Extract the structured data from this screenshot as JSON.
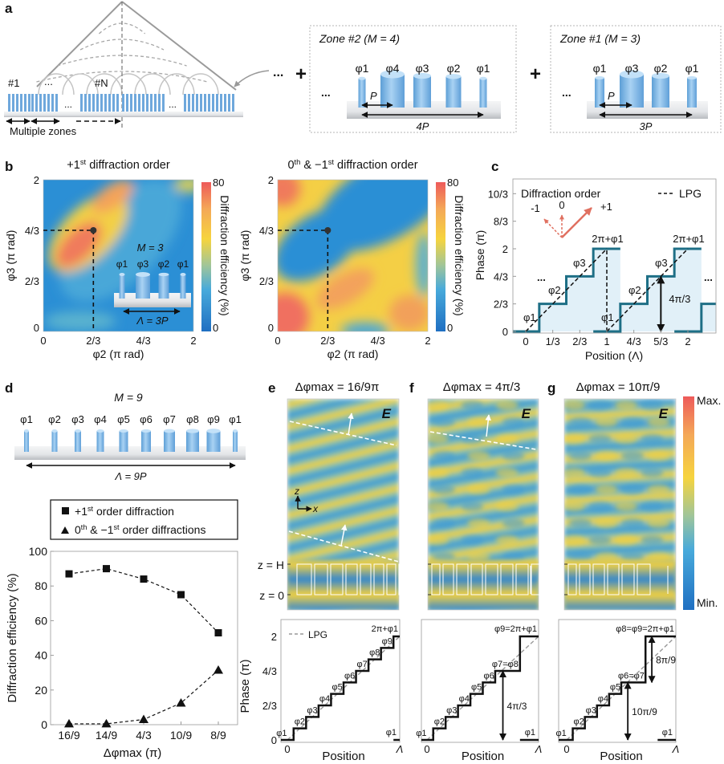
{
  "panel_labels": {
    "a": "a",
    "b": "b",
    "c": "c",
    "d": "d",
    "e": "e",
    "f": "f",
    "g": "g"
  },
  "a": {
    "zone_first": "#1",
    "zone_n": "#N",
    "ellipsis": "...",
    "multiple_zones": "Multiple zones",
    "plus": "+",
    "zone2": {
      "title": "Zone #2 (M = 4)",
      "phases": [
        "φ1",
        "φ4",
        "φ3",
        "φ2",
        "φ1"
      ],
      "pitch": "P",
      "period": "4P"
    },
    "zone1": {
      "title": "Zone #1 (M = 3)",
      "phases": [
        "φ1",
        "φ3",
        "φ2",
        "φ1"
      ],
      "pitch": "P",
      "period": "3P"
    }
  },
  "b": {
    "left_title": "+1st diffraction order",
    "right_title": "0th & −1st diffraction order",
    "xlabel": "φ2 (π rad)",
    "ylabel": "φ3 (π rad)",
    "ticks": [
      "0",
      "2/3",
      "4/3",
      "2"
    ],
    "marked_point": {
      "phi2": 0.6667,
      "phi3": 1.3333
    },
    "colorbar": {
      "label": "Diffraction efficiency (%)",
      "max": "80",
      "min": "0"
    },
    "inset": {
      "m_label": "M = 3",
      "phases": [
        "φ1",
        "φ3",
        "φ2",
        "φ1"
      ],
      "period": "Λ = 3P"
    }
  },
  "c": {
    "chart_data": {
      "type": "line",
      "xlabel": "Position (Λ)",
      "ylabel": "Phase (π)",
      "xticks": [
        "0",
        "1/3",
        "2/3",
        "1",
        "4/3",
        "5/3",
        "2"
      ],
      "yticks": [
        "0",
        "2/3",
        "4/3",
        "2",
        "8/3",
        "10/3"
      ],
      "xlim": [
        -0.16,
        2.33
      ],
      "ylim": [
        0,
        3.7
      ],
      "step_levels": [
        0,
        0.6667,
        1.3333,
        2
      ],
      "step_width": 0.3333,
      "period_starts": [
        0,
        1,
        2
      ],
      "lpg_segments": [
        [
          [
            0,
            0
          ],
          [
            1,
            2
          ]
        ],
        [
          [
            1,
            0
          ],
          [
            2,
            2
          ]
        ]
      ],
      "legend": "LPG",
      "legend_position": "top-right",
      "labels_period": [
        "φ1",
        "φ2",
        "φ3",
        "2π+φ1"
      ],
      "ellipsis": "...",
      "arrow_label": "4π/3",
      "arrow": {
        "x": 1.6667,
        "from": 0,
        "to": 1.3333
      }
    },
    "inset": {
      "title": "Diffraction order",
      "orders": [
        "-1",
        "0",
        "+1"
      ],
      "color": "#e07060"
    }
  },
  "d": {
    "m_label": "M = 9",
    "phases": [
      "φ1",
      "φ2",
      "φ3",
      "φ4",
      "φ5",
      "φ6",
      "φ7",
      "φ8",
      "φ9",
      "φ1"
    ],
    "period": "Λ = 9P",
    "chart_data": {
      "type": "line",
      "categories": [
        "16/9",
        "14/9",
        "4/3",
        "10/9",
        "8/9"
      ],
      "series": [
        {
          "name": "+1st order diffraction",
          "marker": "square",
          "values": [
            87,
            90,
            84,
            75,
            53
          ]
        },
        {
          "name": "0th & −1st order diffractions",
          "marker": "triangle",
          "values": [
            0.5,
            0.5,
            3,
            12.5,
            31.5
          ]
        }
      ],
      "xlabel": "Δφmax (π)",
      "ylabel": "Diffraction efficiency (%)",
      "ylim": [
        0,
        100
      ],
      "yticks": [
        "0",
        "20",
        "40",
        "60",
        "80",
        "100"
      ],
      "legend_position": "top"
    }
  },
  "fields": {
    "e_label": "E",
    "z_h": "z = H",
    "z_0": "z = 0",
    "axis_z": "z",
    "axis_x": "x",
    "colorbar": {
      "max": "Max.",
      "min": "Min."
    }
  },
  "phase_plots": {
    "ylabel": "Phase (π)",
    "xlabel": "Position",
    "x_start": "0",
    "x_end": "Λ",
    "yticks": [
      "0",
      "2/3",
      "4/3",
      "2"
    ],
    "legend": "LPG",
    "step_width": 0.1111,
    "panels": [
      {
        "title": "Δφmax = 16/9π",
        "levels": [
          0,
          0.2222,
          0.4444,
          0.6667,
          0.8889,
          1.1111,
          1.3333,
          1.5556,
          1.7778,
          2
        ],
        "step_labels": [
          "φ1",
          "φ2",
          "φ3",
          "φ4",
          "φ5",
          "φ6",
          "φ7",
          "φ8",
          "φ9"
        ],
        "top_label": "2π+φ1",
        "end_label": "φ1",
        "arrows": []
      },
      {
        "title": "Δφmax = 4π/3",
        "levels": [
          0,
          0.2222,
          0.4444,
          0.6667,
          0.8889,
          1.1111,
          1.3333,
          1.3333,
          2
        ],
        "step_labels": [
          "φ1",
          "φ2",
          "φ3",
          "φ4",
          "φ5",
          "φ6"
        ],
        "merged_label": "φ7=φ8",
        "top_label": "φ9=2π+φ1",
        "end_label": "φ1",
        "arrows": [
          {
            "label": "4π/3",
            "from": 0,
            "to": 1.3333
          }
        ]
      },
      {
        "title": "Δφmax = 10π/9",
        "levels": [
          0,
          0.2222,
          0.4444,
          0.6667,
          0.8889,
          1.1111,
          1.1111,
          2,
          2
        ],
        "step_labels": [
          "φ1",
          "φ2",
          "φ3",
          "φ4",
          "φ5"
        ],
        "merged_label": "φ6=φ7",
        "top_label": "φ8=φ9=2π+φ1",
        "end_label": "φ1",
        "arrows": [
          {
            "label": "10π/9",
            "from": 0,
            "to": 1.1111
          },
          {
            "label": "8π/9",
            "from": 1.1111,
            "to": 2
          }
        ]
      }
    ]
  },
  "colors": {
    "staircase": "#1e6f86",
    "staircase_fill": "#e1f0f8",
    "pillar": "#7db6e6",
    "field_yellow": "#f6d23c",
    "field_blue": "#3f9ad6"
  }
}
